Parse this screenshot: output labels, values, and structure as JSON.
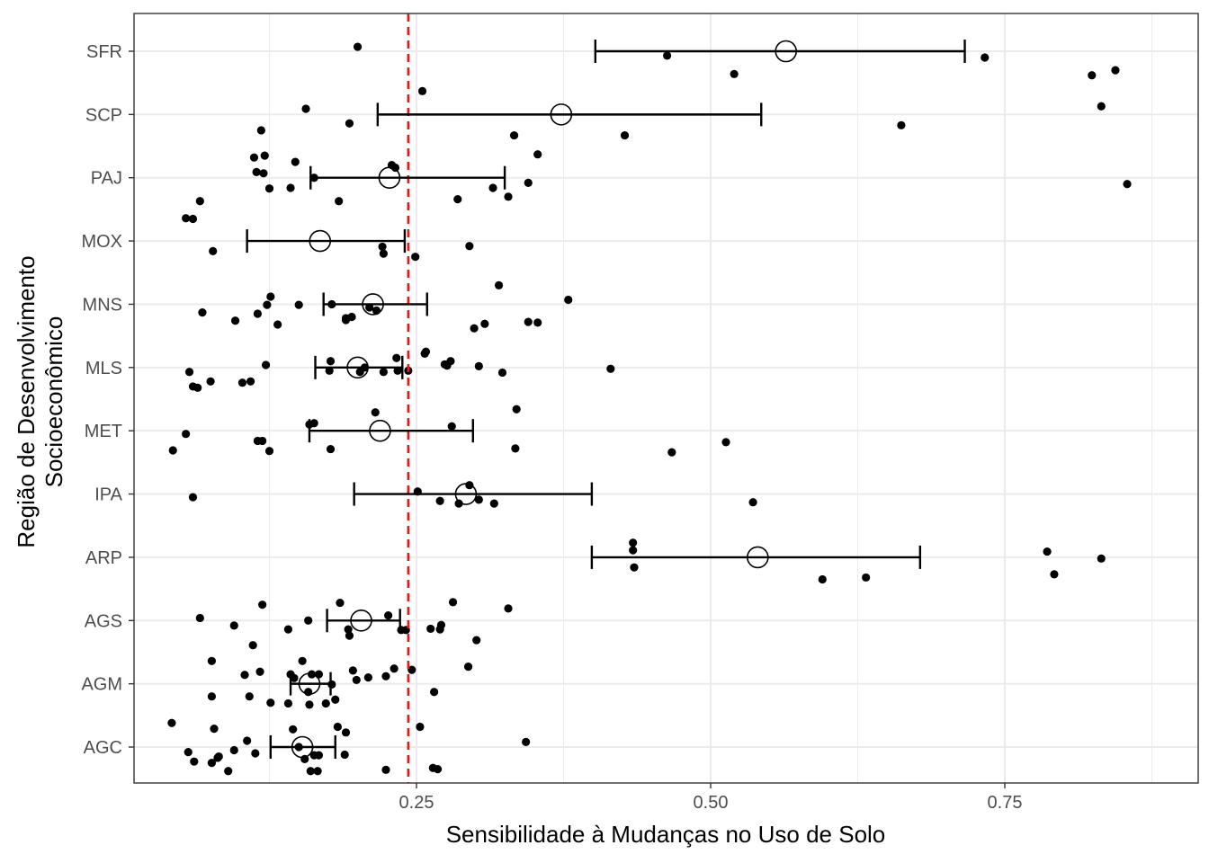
{
  "chart_data": {
    "type": "scatter",
    "xlabel": "Sensibilidade à Mudanças no Uso de Solo",
    "ylabel_lines": [
      "Região de Desenvolvimento",
      "Socioeconômico"
    ],
    "x_ticks": [
      0.25,
      0.5,
      0.75
    ],
    "x_tick_labels": [
      "0.25",
      "0.50",
      "0.75"
    ],
    "xlim": [
      0.0,
      0.9
    ],
    "categories": [
      "AGC",
      "AGM",
      "AGS",
      "ARP",
      "IPA",
      "MET",
      "MLS",
      "MNS",
      "MOX",
      "PAJ",
      "SCP",
      "SFR"
    ],
    "reference_line": {
      "x": 0.243,
      "color": "#e41a1c",
      "style": "dashed"
    },
    "grid": true,
    "colors": {
      "points": "#000000",
      "reference": "#e41a1c",
      "grid": "#ebebeb",
      "panel_border": "#333333"
    },
    "summary": [
      {
        "category": "AGC",
        "mean": 0.153,
        "lower": 0.126,
        "upper": 0.181
      },
      {
        "category": "AGM",
        "mean": 0.159,
        "lower": 0.143,
        "upper": 0.177
      },
      {
        "category": "AGS",
        "mean": 0.203,
        "lower": 0.174,
        "upper": 0.236
      },
      {
        "category": "ARP",
        "mean": 0.54,
        "lower": 0.399,
        "upper": 0.678
      },
      {
        "category": "IPA",
        "mean": 0.292,
        "lower": 0.197,
        "upper": 0.399
      },
      {
        "category": "MET",
        "mean": 0.219,
        "lower": 0.159,
        "upper": 0.298
      },
      {
        "category": "MLS",
        "mean": 0.2,
        "lower": 0.164,
        "upper": 0.238
      },
      {
        "category": "MNS",
        "mean": 0.213,
        "lower": 0.171,
        "upper": 0.259
      },
      {
        "category": "MOX",
        "mean": 0.168,
        "lower": 0.106,
        "upper": 0.24
      },
      {
        "category": "PAJ",
        "mean": 0.227,
        "lower": 0.16,
        "upper": 0.325
      },
      {
        "category": "SCP",
        "mean": 0.373,
        "lower": 0.217,
        "upper": 0.543
      },
      {
        "category": "SFR",
        "mean": 0.564,
        "lower": 0.402,
        "upper": 0.716
      }
    ],
    "points": [
      {
        "category": "SFR",
        "x": 0.52,
        "y": 0.36
      },
      {
        "category": "SFR",
        "x": 0.824,
        "y": 0.38
      },
      {
        "category": "SFR",
        "x": 0.844,
        "y": 0.3
      },
      {
        "category": "SFR",
        "x": 0.463,
        "y": 0.07
      },
      {
        "category": "SFR",
        "x": 0.733,
        "y": 0.1
      },
      {
        "category": "SFR",
        "x": 0.2,
        "y": -0.07
      },
      {
        "category": "SCP",
        "x": 0.353,
        "y": 0.63
      },
      {
        "category": "SCP",
        "x": 0.118,
        "y": 0.25
      },
      {
        "category": "SCP",
        "x": 0.333,
        "y": 0.33
      },
      {
        "category": "SCP",
        "x": 0.427,
        "y": 0.33
      },
      {
        "category": "SCP",
        "x": 0.193,
        "y": 0.14
      },
      {
        "category": "SCP",
        "x": 0.662,
        "y": 0.17
      },
      {
        "category": "SCP",
        "x": 0.156,
        "y": -0.09
      },
      {
        "category": "SCP",
        "x": 0.832,
        "y": -0.13
      },
      {
        "category": "SCP",
        "x": 0.255,
        "y": -0.37
      },
      {
        "category": "PAJ",
        "x": 0.066,
        "y": 0.37
      },
      {
        "category": "PAJ",
        "x": 0.184,
        "y": 0.37
      },
      {
        "category": "PAJ",
        "x": 0.285,
        "y": 0.34
      },
      {
        "category": "PAJ",
        "x": 0.328,
        "y": 0.3
      },
      {
        "category": "PAJ",
        "x": 0.125,
        "y": 0.17
      },
      {
        "category": "PAJ",
        "x": 0.143,
        "y": 0.16
      },
      {
        "category": "PAJ",
        "x": 0.315,
        "y": 0.16
      },
      {
        "category": "PAJ",
        "x": 0.345,
        "y": 0.08
      },
      {
        "category": "PAJ",
        "x": 0.854,
        "y": 0.1
      },
      {
        "category": "PAJ",
        "x": 0.163,
        "y": 0.0
      },
      {
        "category": "PAJ",
        "x": 0.12,
        "y": -0.07
      },
      {
        "category": "PAJ",
        "x": 0.114,
        "y": -0.09
      },
      {
        "category": "PAJ",
        "x": 0.232,
        "y": -0.16
      },
      {
        "category": "PAJ",
        "x": 0.229,
        "y": -0.2
      },
      {
        "category": "PAJ",
        "x": 0.147,
        "y": -0.25
      },
      {
        "category": "PAJ",
        "x": 0.112,
        "y": -0.32
      },
      {
        "category": "PAJ",
        "x": 0.121,
        "y": -0.35
      },
      {
        "category": "MOX",
        "x": 0.249,
        "y": 0.25
      },
      {
        "category": "MOX",
        "x": 0.222,
        "y": 0.2
      },
      {
        "category": "MOX",
        "x": 0.077,
        "y": 0.16
      },
      {
        "category": "MOX",
        "x": 0.221,
        "y": 0.09
      },
      {
        "category": "MOX",
        "x": 0.295,
        "y": 0.08
      },
      {
        "category": "MOX",
        "x": 0.054,
        "y": -0.36
      },
      {
        "category": "MOX",
        "x": 0.06,
        "y": -0.35
      },
      {
        "category": "MNS",
        "x": 0.299,
        "y": 0.38
      },
      {
        "category": "MNS",
        "x": 0.308,
        "y": 0.31
      },
      {
        "category": "MNS",
        "x": 0.345,
        "y": 0.28
      },
      {
        "category": "MNS",
        "x": 0.353,
        "y": 0.29
      },
      {
        "category": "MNS",
        "x": 0.132,
        "y": 0.32
      },
      {
        "category": "MNS",
        "x": 0.096,
        "y": 0.26
      },
      {
        "category": "MNS",
        "x": 0.19,
        "y": 0.25
      },
      {
        "category": "MNS",
        "x": 0.19,
        "y": 0.22
      },
      {
        "category": "MNS",
        "x": 0.195,
        "y": 0.2
      },
      {
        "category": "MNS",
        "x": 0.115,
        "y": 0.15
      },
      {
        "category": "MNS",
        "x": 0.068,
        "y": 0.13
      },
      {
        "category": "MNS",
        "x": 0.21,
        "y": 0.05
      },
      {
        "category": "MNS",
        "x": 0.216,
        "y": 0.1
      },
      {
        "category": "MNS",
        "x": 0.123,
        "y": 0.01
      },
      {
        "category": "MNS",
        "x": 0.15,
        "y": 0.01
      },
      {
        "category": "MNS",
        "x": 0.178,
        "y": 0.0
      },
      {
        "category": "MNS",
        "x": 0.126,
        "y": -0.12
      },
      {
        "category": "MNS",
        "x": 0.379,
        "y": -0.07
      },
      {
        "category": "MNS",
        "x": 0.32,
        "y": -0.3
      },
      {
        "category": "MLS",
        "x": 0.06,
        "y": 0.3
      },
      {
        "category": "MLS",
        "x": 0.064,
        "y": 0.32
      },
      {
        "category": "MLS",
        "x": 0.075,
        "y": 0.22
      },
      {
        "category": "MLS",
        "x": 0.102,
        "y": 0.24
      },
      {
        "category": "MLS",
        "x": 0.109,
        "y": 0.22
      },
      {
        "category": "MLS",
        "x": 0.057,
        "y": 0.07
      },
      {
        "category": "MLS",
        "x": 0.122,
        "y": -0.04
      },
      {
        "category": "MLS",
        "x": 0.176,
        "y": 0.05
      },
      {
        "category": "MLS",
        "x": 0.177,
        "y": -0.1
      },
      {
        "category": "MLS",
        "x": 0.202,
        "y": 0.07
      },
      {
        "category": "MLS",
        "x": 0.206,
        "y": 0.0
      },
      {
        "category": "MLS",
        "x": 0.222,
        "y": 0.07
      },
      {
        "category": "MLS",
        "x": 0.234,
        "y": 0.05
      },
      {
        "category": "MLS",
        "x": 0.233,
        "y": -0.15
      },
      {
        "category": "MLS",
        "x": 0.243,
        "y": 0.05
      },
      {
        "category": "MLS",
        "x": 0.274,
        "y": -0.05
      },
      {
        "category": "MLS",
        "x": 0.276,
        "y": -0.03
      },
      {
        "category": "MLS",
        "x": 0.279,
        "y": -0.1
      },
      {
        "category": "MLS",
        "x": 0.257,
        "y": -0.22
      },
      {
        "category": "MLS",
        "x": 0.258,
        "y": -0.25
      },
      {
        "category": "MLS",
        "x": 0.303,
        "y": -0.02
      },
      {
        "category": "MLS",
        "x": 0.323,
        "y": 0.08
      },
      {
        "category": "MLS",
        "x": 0.415,
        "y": 0.02
      },
      {
        "category": "MET",
        "x": 0.043,
        "y": 0.31
      },
      {
        "category": "MET",
        "x": 0.054,
        "y": 0.05
      },
      {
        "category": "MET",
        "x": 0.115,
        "y": 0.16
      },
      {
        "category": "MET",
        "x": 0.119,
        "y": 0.16
      },
      {
        "category": "MET",
        "x": 0.125,
        "y": 0.32
      },
      {
        "category": "MET",
        "x": 0.177,
        "y": 0.29
      },
      {
        "category": "MET",
        "x": 0.159,
        "y": -0.1
      },
      {
        "category": "MET",
        "x": 0.163,
        "y": -0.12
      },
      {
        "category": "MET",
        "x": 0.215,
        "y": -0.29
      },
      {
        "category": "MET",
        "x": 0.28,
        "y": -0.07
      },
      {
        "category": "MET",
        "x": 0.334,
        "y": 0.28
      },
      {
        "category": "MET",
        "x": 0.335,
        "y": -0.34
      },
      {
        "category": "MET",
        "x": 0.467,
        "y": 0.34
      },
      {
        "category": "MET",
        "x": 0.513,
        "y": 0.18
      },
      {
        "category": "IPA",
        "x": 0.06,
        "y": 0.05
      },
      {
        "category": "IPA",
        "x": 0.27,
        "y": 0.11
      },
      {
        "category": "IPA",
        "x": 0.286,
        "y": 0.15
      },
      {
        "category": "IPA",
        "x": 0.303,
        "y": 0.09
      },
      {
        "category": "IPA",
        "x": 0.316,
        "y": 0.15
      },
      {
        "category": "IPA",
        "x": 0.536,
        "y": 0.13
      },
      {
        "category": "IPA",
        "x": 0.251,
        "y": -0.04
      },
      {
        "category": "IPA",
        "x": 0.295,
        "y": -0.14
      },
      {
        "category": "ARP",
        "x": 0.595,
        "y": 0.35
      },
      {
        "category": "ARP",
        "x": 0.632,
        "y": 0.32
      },
      {
        "category": "ARP",
        "x": 0.792,
        "y": 0.27
      },
      {
        "category": "ARP",
        "x": 0.786,
        "y": -0.09
      },
      {
        "category": "ARP",
        "x": 0.832,
        "y": 0.02
      },
      {
        "category": "ARP",
        "x": 0.435,
        "y": 0.16
      },
      {
        "category": "ARP",
        "x": 0.434,
        "y": -0.11
      },
      {
        "category": "ARP",
        "x": 0.434,
        "y": -0.23
      },
      {
        "category": "AGS",
        "x": 0.153,
        "y": 0.64
      },
      {
        "category": "AGS",
        "x": 0.111,
        "y": 0.39
      },
      {
        "category": "AGS",
        "x": 0.294,
        "y": 0.73
      },
      {
        "category": "AGS",
        "x": 0.301,
        "y": 0.31
      },
      {
        "category": "AGS",
        "x": 0.193,
        "y": 0.24
      },
      {
        "category": "AGS",
        "x": 0.141,
        "y": 0.14
      },
      {
        "category": "AGS",
        "x": 0.192,
        "y": 0.14
      },
      {
        "category": "AGS",
        "x": 0.095,
        "y": 0.08
      },
      {
        "category": "AGS",
        "x": 0.158,
        "y": 0.0
      },
      {
        "category": "AGS",
        "x": 0.066,
        "y": -0.04
      },
      {
        "category": "AGS",
        "x": 0.237,
        "y": 0.15
      },
      {
        "category": "AGS",
        "x": 0.241,
        "y": 0.15
      },
      {
        "category": "AGS",
        "x": 0.262,
        "y": 0.13
      },
      {
        "category": "AGS",
        "x": 0.27,
        "y": 0.14
      },
      {
        "category": "AGS",
        "x": 0.271,
        "y": 0.07
      },
      {
        "category": "AGS",
        "x": 0.226,
        "y": -0.08
      },
      {
        "category": "AGS",
        "x": 0.185,
        "y": -0.28
      },
      {
        "category": "AGS",
        "x": 0.119,
        "y": -0.25
      },
      {
        "category": "AGS",
        "x": 0.281,
        "y": -0.29
      },
      {
        "category": "AGS",
        "x": 0.328,
        "y": -0.19
      },
      {
        "category": "AGM",
        "x": 0.076,
        "y": 0.2
      },
      {
        "category": "AGM",
        "x": 0.108,
        "y": 0.2
      },
      {
        "category": "AGM",
        "x": 0.126,
        "y": 0.3
      },
      {
        "category": "AGM",
        "x": 0.141,
        "y": 0.31
      },
      {
        "category": "AGM",
        "x": 0.159,
        "y": 0.33
      },
      {
        "category": "AGM",
        "x": 0.173,
        "y": 0.31
      },
      {
        "category": "AGM",
        "x": 0.181,
        "y": 0.25
      },
      {
        "category": "AGM",
        "x": 0.104,
        "y": -0.14
      },
      {
        "category": "AGM",
        "x": 0.117,
        "y": -0.19
      },
      {
        "category": "AGM",
        "x": 0.076,
        "y": -0.36
      },
      {
        "category": "AGM",
        "x": 0.158,
        "y": 0.13
      },
      {
        "category": "AGM",
        "x": 0.178,
        "y": 0.01
      },
      {
        "category": "AGM",
        "x": 0.146,
        "y": -0.09
      },
      {
        "category": "AGM",
        "x": 0.143,
        "y": -0.15
      },
      {
        "category": "AGM",
        "x": 0.161,
        "y": -0.15
      },
      {
        "category": "AGM",
        "x": 0.167,
        "y": -0.15
      },
      {
        "category": "AGM",
        "x": 0.199,
        "y": -0.06
      },
      {
        "category": "AGM",
        "x": 0.209,
        "y": -0.1
      },
      {
        "category": "AGM",
        "x": 0.196,
        "y": -0.21
      },
      {
        "category": "AGM",
        "x": 0.231,
        "y": -0.24
      },
      {
        "category": "AGM",
        "x": 0.246,
        "y": -0.22
      },
      {
        "category": "AGM",
        "x": 0.265,
        "y": 0.13
      },
      {
        "category": "AGM",
        "x": 0.224,
        "y": -0.12
      },
      {
        "category": "AGC",
        "x": 0.09,
        "y": 0.38
      },
      {
        "category": "AGC",
        "x": 0.061,
        "y": 0.23
      },
      {
        "category": "AGC",
        "x": 0.076,
        "y": 0.25
      },
      {
        "category": "AGC",
        "x": 0.081,
        "y": 0.17
      },
      {
        "category": "AGC",
        "x": 0.082,
        "y": 0.15
      },
      {
        "category": "AGC",
        "x": 0.056,
        "y": 0.08
      },
      {
        "category": "AGC",
        "x": 0.095,
        "y": 0.05
      },
      {
        "category": "AGC",
        "x": 0.113,
        "y": 0.1
      },
      {
        "category": "AGC",
        "x": 0.106,
        "y": -0.1
      },
      {
        "category": "AGC",
        "x": 0.078,
        "y": -0.29
      },
      {
        "category": "AGC",
        "x": 0.042,
        "y": -0.38
      },
      {
        "category": "AGC",
        "x": 0.16,
        "y": 0.38
      },
      {
        "category": "AGC",
        "x": 0.166,
        "y": 0.38
      },
      {
        "category": "AGC",
        "x": 0.155,
        "y": 0.19
      },
      {
        "category": "AGC",
        "x": 0.163,
        "y": 0.13
      },
      {
        "category": "AGC",
        "x": 0.167,
        "y": 0.13
      },
      {
        "category": "AGC",
        "x": 0.15,
        "y": 0.0
      },
      {
        "category": "AGC",
        "x": 0.145,
        "y": -0.28
      },
      {
        "category": "AGC",
        "x": 0.189,
        "y": 0.12
      },
      {
        "category": "AGC",
        "x": 0.19,
        "y": -0.23
      },
      {
        "category": "AGC",
        "x": 0.183,
        "y": -0.32
      },
      {
        "category": "AGC",
        "x": 0.224,
        "y": 0.36
      },
      {
        "category": "AGC",
        "x": 0.264,
        "y": 0.33
      },
      {
        "category": "AGC",
        "x": 0.268,
        "y": 0.35
      },
      {
        "category": "AGC",
        "x": 0.253,
        "y": -0.32
      },
      {
        "category": "AGC",
        "x": 0.343,
        "y": -0.08
      }
    ]
  }
}
